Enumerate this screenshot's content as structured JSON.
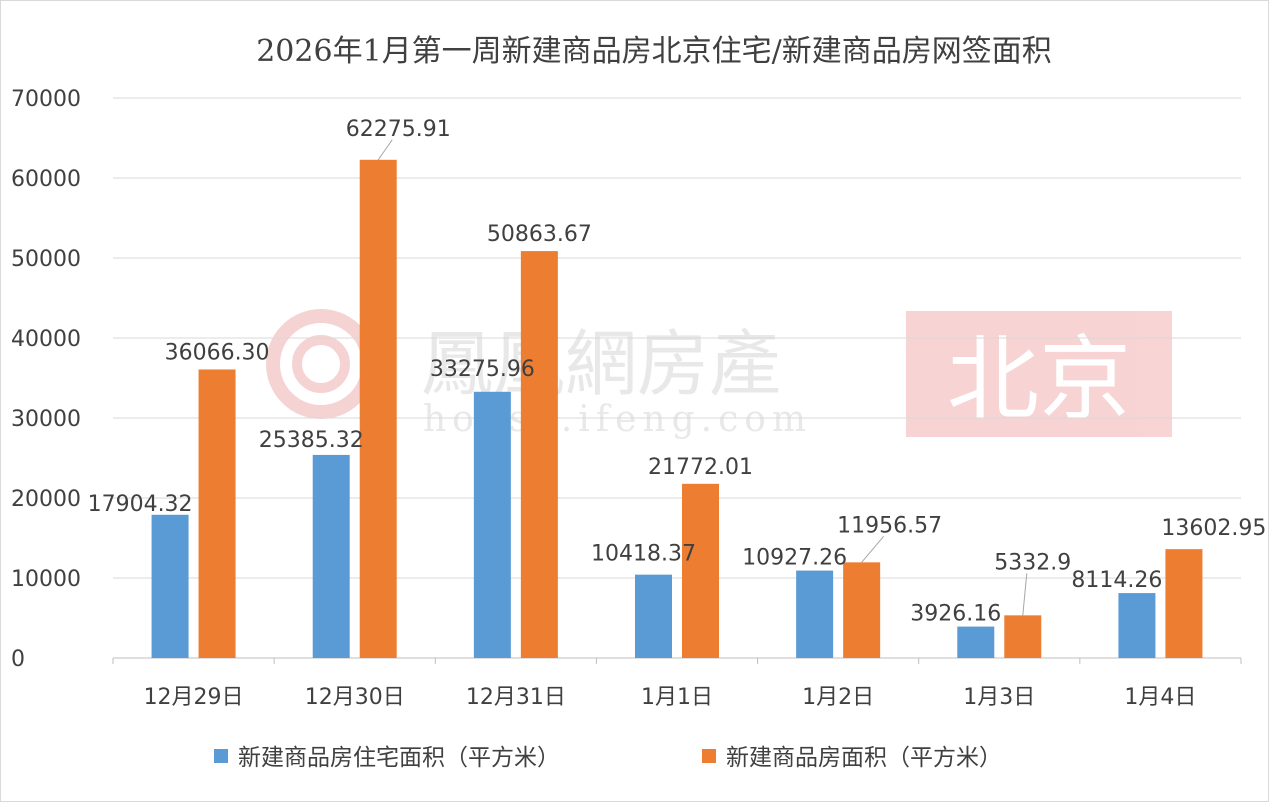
{
  "chart_data": {
    "type": "bar",
    "title": "2026年1月第一周新建商品房北京住宅/新建商品房网签面积",
    "categories": [
      "12月29日",
      "12月30日",
      "12月31日",
      "1月1日",
      "1月2日",
      "1月3日",
      "1月4日"
    ],
    "series": [
      {
        "name": "新建商品房住宅面积（平方米）",
        "color": "#5B9BD5",
        "values": [
          17904.32,
          25385.32,
          33275.96,
          10418.37,
          10927.26,
          3926.16,
          8114.26
        ],
        "labels": [
          "17904.32",
          "25385.32",
          "33275.96",
          "10418.37",
          "10927.26",
          "3926.16",
          "8114.26"
        ]
      },
      {
        "name": "新建商品房面积（平方米）",
        "color": "#ED7D31",
        "values": [
          36066.3,
          62275.91,
          50863.67,
          21772.01,
          11956.57,
          5332.9,
          13602.95
        ],
        "labels": [
          "36066.30",
          "62275.91",
          "50863.67",
          "21772.01",
          "11956.57",
          "5332.9",
          "13602.95"
        ]
      }
    ],
    "ylim": [
      0,
      70000
    ],
    "yticks": [
      0,
      10000,
      20000,
      30000,
      40000,
      50000,
      60000,
      70000
    ],
    "grid": true,
    "legend_position": "bottom",
    "xlabel": "",
    "ylabel": ""
  },
  "watermark": {
    "brand": "鳳凰網房產",
    "url": "house.ifeng.com",
    "city": "北京"
  }
}
